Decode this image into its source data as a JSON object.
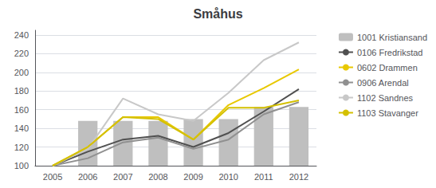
{
  "chart_data": {
    "type": "line",
    "title": "Småhus",
    "categories": [
      "2005",
      "2006",
      "2007",
      "2008",
      "2009",
      "2010",
      "2011",
      "2012"
    ],
    "series": [
      {
        "name": "1001 Kristiansand",
        "type": "bar",
        "color": "#bfbfbf",
        "values": [
          null,
          148,
          148,
          148,
          150,
          150,
          163,
          163
        ]
      },
      {
        "name": "0106 Fredrikstad",
        "type": "line",
        "color": "#505050",
        "values": [
          100,
          115,
          128,
          132,
          120,
          135,
          158,
          182
        ]
      },
      {
        "name": "0602 Drammen",
        "type": "line",
        "color": "#e8c800",
        "values": [
          100,
          120,
          152,
          152,
          128,
          165,
          183,
          203
        ]
      },
      {
        "name": "0906 Arendal",
        "type": "line",
        "color": "#909090",
        "values": [
          100,
          108,
          125,
          130,
          118,
          128,
          155,
          168
        ]
      },
      {
        "name": "1102 Sandnes",
        "type": "line",
        "color": "#c8c8c8",
        "values": [
          100,
          118,
          172,
          155,
          148,
          178,
          213,
          232
        ]
      },
      {
        "name": "1103 Stavanger",
        "type": "line",
        "color": "#d4c000",
        "values": [
          100,
          120,
          152,
          150,
          128,
          162,
          162,
          170
        ]
      }
    ],
    "ylim": [
      100,
      245
    ],
    "yticks": [
      100,
      120,
      140,
      160,
      180,
      200,
      220,
      240
    ],
    "grid": true,
    "legend": "right"
  }
}
